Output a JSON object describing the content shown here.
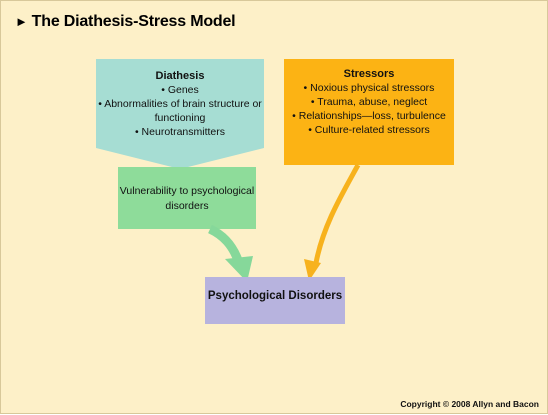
{
  "title": "The Diathesis-Stress Model",
  "diathesis": {
    "heading": "Diathesis",
    "items": [
      "• Genes",
      "• Abnormalities of brain structure or functioning",
      "• Neurotransmitters"
    ]
  },
  "stressors": {
    "heading": "Stressors",
    "items": [
      "• Noxious physical stressors",
      "• Trauma, abuse, neglect",
      "• Relationships—loss, turbulence",
      "• Culture-related stressors"
    ]
  },
  "vulnerability": "Vulnerability to psychological disorders",
  "disorders": "Psychological Disorders",
  "copyright": "Copyright © 2008 Allyn and Bacon",
  "colors": {
    "background": "#fdf0c8",
    "diathesis": "#a6ddd3",
    "vulnerability": "#8edc9a",
    "stressors": "#fcb314",
    "disorders": "#b7b3de",
    "green_arrow": "#86d89a",
    "orange_arrow": "#f7b21d"
  }
}
